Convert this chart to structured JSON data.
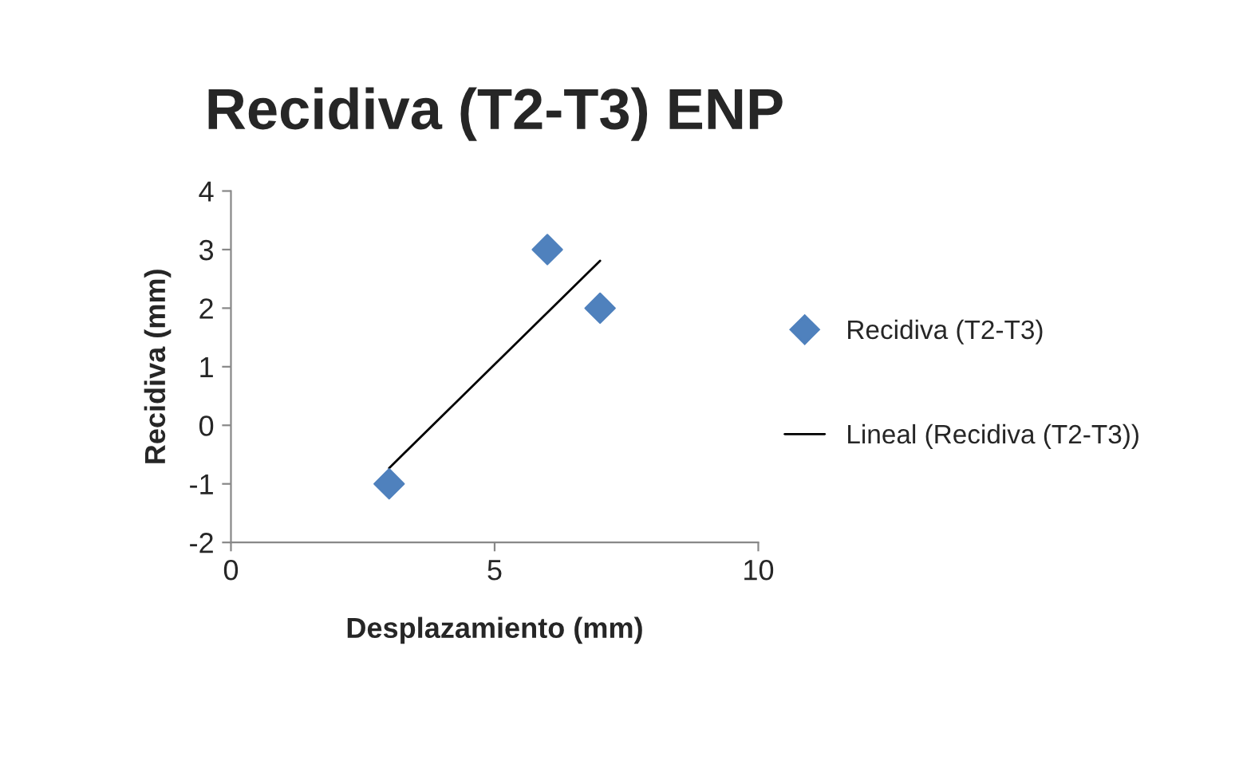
{
  "chart_data": {
    "type": "scatter",
    "title": "Recidiva (T2-T3) ENP",
    "xlabel": "Desplazamiento (mm)",
    "ylabel": "Recidiva (mm)",
    "series": [
      {
        "name": "Recidiva (T2-T3)",
        "color": "#4f81bd",
        "marker": "diamond",
        "x": [
          3,
          6,
          7
        ],
        "values": [
          -1,
          3,
          2
        ]
      },
      {
        "name": "Lineal (Recidiva (T2-T3))",
        "type": "line",
        "color": "#000000",
        "marker": "none",
        "line_style": "solid",
        "x": [
          3,
          7
        ],
        "values": [
          -0.73,
          2.81
        ]
      }
    ],
    "xlim": [
      0,
      10
    ],
    "xticks": [
      0,
      5,
      10
    ],
    "ylim": [
      -2,
      4
    ],
    "yticks": [
      -2,
      -1,
      0,
      1,
      2,
      3,
      4
    ],
    "grid": false,
    "legend": "right"
  }
}
